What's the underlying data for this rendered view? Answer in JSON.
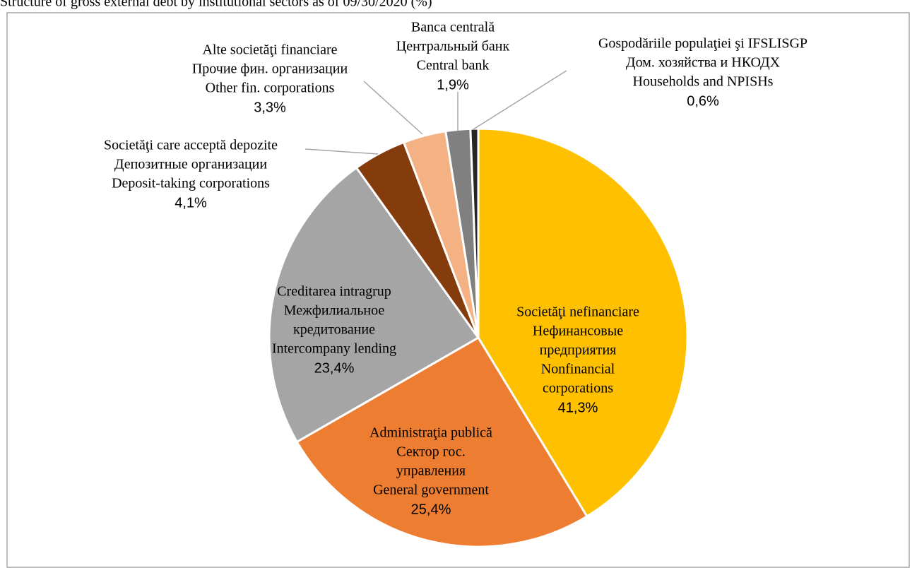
{
  "chart_data": {
    "type": "pie",
    "title": "Structure of gross external debt by institutional sectors as of 09/30/2020 (%)",
    "categories": [
      [
        "Societăţi nefinanciare",
        "Нефинансовые",
        "предприятия",
        "Nonfinancial",
        "corporations"
      ],
      [
        "Administraţia publică",
        "Сектор гос.",
        "управления",
        "General government"
      ],
      [
        "Creditarea intragrup",
        "Межфилиальное",
        "кредитование",
        "Intercompany lending"
      ],
      [
        "Societăţi care acceptă depozite",
        "Депозитные организации",
        "Deposit-taking corporations"
      ],
      [
        "Alte societăţi financiare",
        "Прочие фин. организации",
        "Other fin. corporations"
      ],
      [
        "Banca centrală",
        "Центральный банк",
        "Central bank"
      ],
      [
        "Gospodăriile populaţiei şi IFSLISGP",
        "Дом. хозяйства и НКОДХ",
        "Households and NPISHs"
      ]
    ],
    "values": [
      41.3,
      25.4,
      23.4,
      4.1,
      3.3,
      1.9,
      0.6
    ],
    "value_labels": [
      "41,3%",
      "25,4%",
      "23,4%",
      "4,1%",
      "3,3%",
      "1,9%",
      "0,6%"
    ],
    "colors": [
      "#FFC000",
      "#ED7D31",
      "#A5A5A5",
      "#843C0C",
      "#F4B183",
      "#808080",
      "#262626"
    ]
  }
}
